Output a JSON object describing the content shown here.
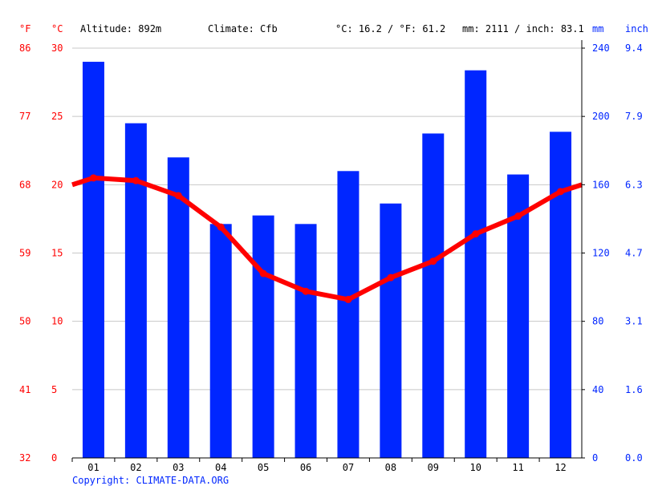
{
  "header": {
    "f_unit": "°F",
    "c_unit": "°C",
    "altitude": "Altitude: 892m",
    "climate": "Climate: Cfb",
    "temp_avg": "°C: 16.2 / °F: 61.2",
    "precip_total": "mm: 2111 / inch: 83.1",
    "mm_unit": "mm",
    "inch_unit": "inch"
  },
  "copyright": "Copyright: CLIMATE-DATA.ORG",
  "colors": {
    "temperature": "#ff0000",
    "precipitation": "#0026ff",
    "grid": "#c8c8c8"
  },
  "chart_data": {
    "type": "bar+line",
    "categories": [
      "01",
      "02",
      "03",
      "04",
      "05",
      "06",
      "07",
      "08",
      "09",
      "10",
      "11",
      "12"
    ],
    "series": [
      {
        "kind": "bar",
        "axis": "right",
        "unit": "mm",
        "values": [
          232,
          196,
          176,
          137,
          142,
          137,
          168,
          149,
          190,
          227,
          166,
          191
        ]
      },
      {
        "kind": "line",
        "axis": "left",
        "unit": "°C",
        "values": [
          20.5,
          20.3,
          19.2,
          16.9,
          13.5,
          12.2,
          11.6,
          13.2,
          14.4,
          16.4,
          17.7,
          19.5
        ]
      }
    ],
    "left_axis_c": {
      "range": [
        0,
        30
      ],
      "ticks": [
        "0",
        "5",
        "10",
        "15",
        "20",
        "25",
        "30"
      ]
    },
    "left_axis_f": {
      "ticks": [
        "32",
        "41",
        "50",
        "59",
        "68",
        "77",
        "86"
      ]
    },
    "right_axis_mm": {
      "range": [
        0,
        240
      ],
      "ticks": [
        "0",
        "40",
        "80",
        "120",
        "160",
        "200",
        "240"
      ]
    },
    "right_axis_inch": {
      "ticks": [
        "0.0",
        "1.6",
        "3.1",
        "4.7",
        "6.3",
        "7.9",
        "9.4"
      ]
    },
    "grid": true
  }
}
